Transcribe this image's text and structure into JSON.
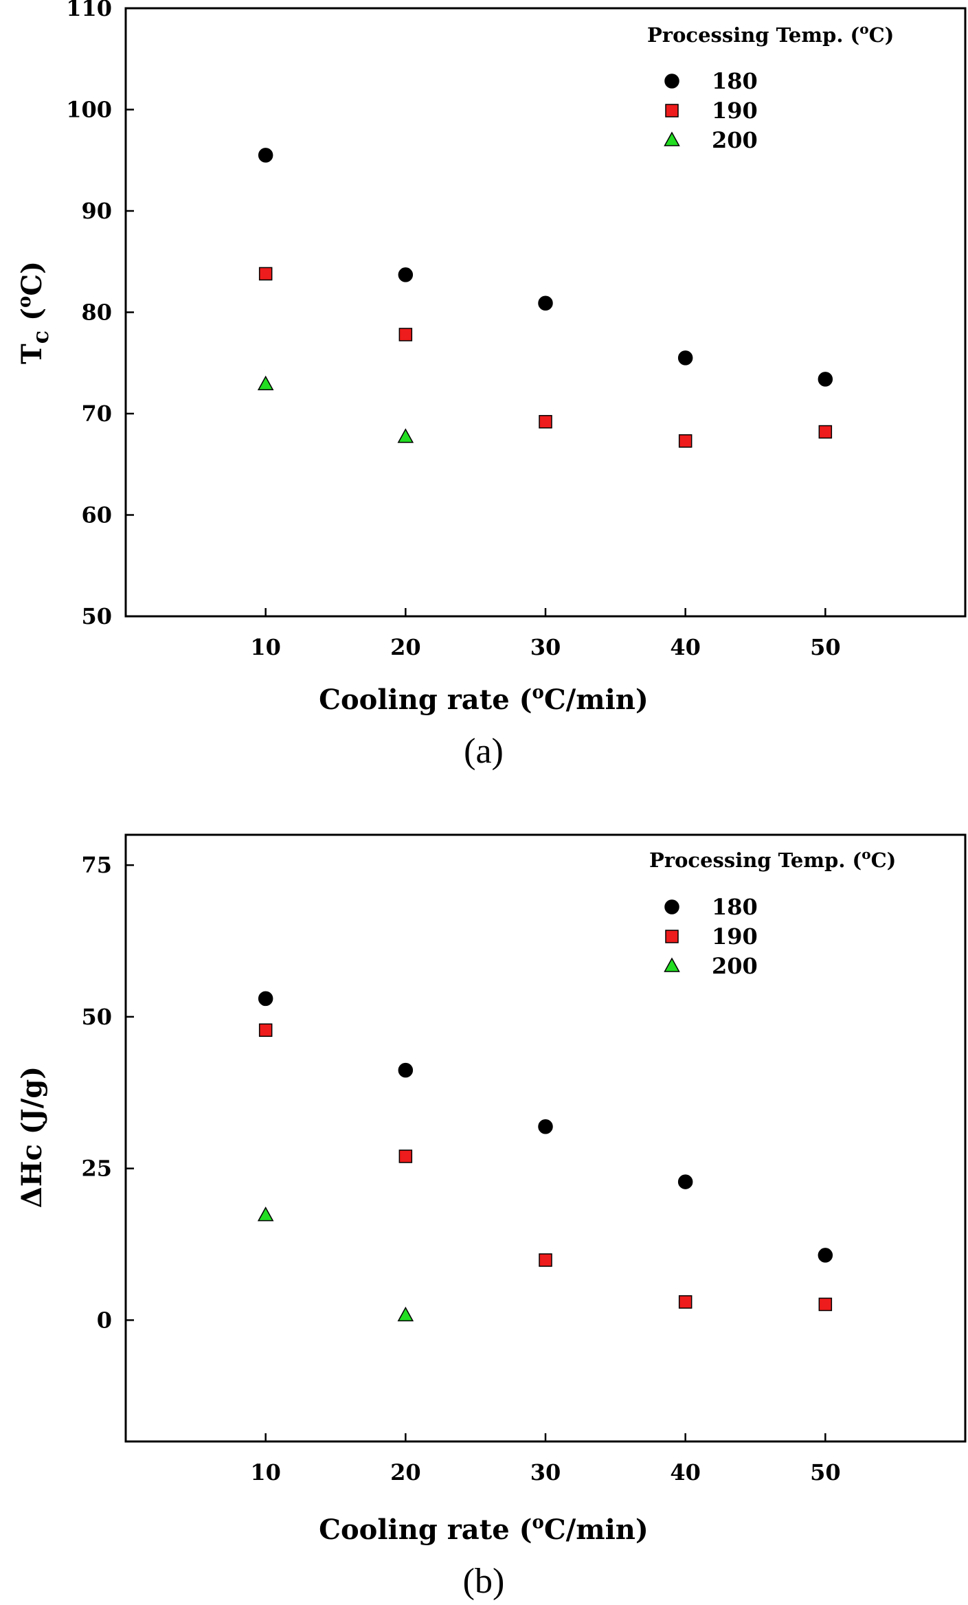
{
  "chart_data": [
    {
      "type": "scatter",
      "panel": "a",
      "caption": "(a)",
      "xlabel": "Cooling rate (oC/min)",
      "xlabel_parts": {
        "pre": "Cooling rate (",
        "sup": "o",
        "post": "C/min)"
      },
      "ylabel": "Tc (oC)",
      "ylabel_parts": {
        "main": "T",
        "sub": "c",
        "mid": " (",
        "sup": "o",
        "post": "C)"
      },
      "xlim": [
        0,
        60
      ],
      "ylim": [
        50,
        110
      ],
      "xticks": [
        10,
        20,
        30,
        40,
        50
      ],
      "yticks": [
        50,
        60,
        70,
        80,
        90,
        100,
        110
      ],
      "legend": {
        "title": "Processing Temp. (oC)",
        "title_parts": {
          "pre": "Processing Temp. (",
          "sup": "o",
          "post": "C)"
        },
        "placement": "top-right"
      },
      "series": [
        {
          "name": "180",
          "marker": "circle",
          "color": "#000000",
          "x": [
            10,
            20,
            30,
            40,
            50
          ],
          "y": [
            95.5,
            83.7,
            80.9,
            75.5,
            73.4
          ]
        },
        {
          "name": "190",
          "marker": "square",
          "color": "#ee1c1c",
          "x": [
            10,
            20,
            30,
            40,
            50
          ],
          "y": [
            83.8,
            77.8,
            69.2,
            67.3,
            68.2
          ]
        },
        {
          "name": "200",
          "marker": "triangle",
          "color": "#22dd22",
          "x": [
            10,
            20
          ],
          "y": [
            72.9,
            67.7
          ]
        }
      ]
    },
    {
      "type": "scatter",
      "panel": "b",
      "caption": "(b)",
      "xlabel": "Cooling rate (oC/min)",
      "xlabel_parts": {
        "pre": "Cooling rate (",
        "sup": "o",
        "post": "C/min)"
      },
      "ylabel": "ΔHc (J/g)",
      "ylabel_parts": {
        "main": "ΔHc (J/g)"
      },
      "xlim": [
        0,
        60
      ],
      "ylim": [
        -20,
        80
      ],
      "xticks": [
        10,
        20,
        30,
        40,
        50
      ],
      "yticks": [
        0,
        25,
        50,
        75
      ],
      "legend": {
        "title": "Processing Temp. (oC)",
        "title_parts": {
          "pre": "Processing Temp. (",
          "sup": "o",
          "post": "C)"
        },
        "placement": "top-right"
      },
      "series": [
        {
          "name": "180",
          "marker": "circle",
          "color": "#000000",
          "x": [
            10,
            20,
            30,
            40,
            50
          ],
          "y": [
            53.0,
            41.2,
            31.9,
            22.8,
            10.7
          ]
        },
        {
          "name": "190",
          "marker": "square",
          "color": "#ee1c1c",
          "x": [
            10,
            20,
            30,
            40,
            50
          ],
          "y": [
            47.8,
            27.0,
            9.9,
            3.0,
            2.6
          ]
        },
        {
          "name": "200",
          "marker": "triangle",
          "color": "#22dd22",
          "x": [
            10,
            20
          ],
          "y": [
            17.3,
            0.8
          ]
        }
      ]
    }
  ]
}
